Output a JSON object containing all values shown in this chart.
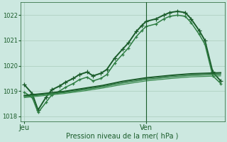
{
  "background_color": "#cce8e0",
  "grid_color": "#aaccbb",
  "line_color_dark": "#1a5c2a",
  "ylabel_ticks": [
    1018,
    1019,
    1020,
    1021,
    1022
  ],
  "xlabel": "Pression niveau de la mer( hPa )",
  "x_tick_labels": [
    "Jeu",
    "Ven"
  ],
  "x_tick_pos": [
    0.0,
    0.62
  ],
  "series": [
    {
      "x": [
        0.0,
        0.04,
        0.07,
        0.11,
        0.14,
        0.18,
        0.21,
        0.25,
        0.28,
        0.32,
        0.35,
        0.39,
        0.42,
        0.46,
        0.5,
        0.53,
        0.57,
        0.6,
        0.62,
        0.67,
        0.71,
        0.74,
        0.78,
        0.82,
        0.85,
        0.89,
        0.92,
        0.96,
        1.0
      ],
      "y": [
        1019.25,
        1018.9,
        1018.25,
        1018.75,
        1019.05,
        1019.2,
        1019.35,
        1019.5,
        1019.65,
        1019.75,
        1019.6,
        1019.7,
        1019.85,
        1020.3,
        1020.65,
        1020.9,
        1021.35,
        1021.6,
        1021.75,
        1021.85,
        1022.0,
        1022.1,
        1022.15,
        1022.1,
        1021.85,
        1021.4,
        1021.0,
        1019.75,
        1019.4
      ],
      "color": "#1a5c2a",
      "lw": 1.4,
      "marker": "+",
      "ms": 4.5
    },
    {
      "x": [
        0.0,
        0.04,
        0.07,
        0.11,
        0.14,
        0.18,
        0.21,
        0.25,
        0.28,
        0.32,
        0.35,
        0.39,
        0.42,
        0.46,
        0.5,
        0.53,
        0.57,
        0.6,
        0.62,
        0.67,
        0.71,
        0.74,
        0.78,
        0.82,
        0.85,
        0.89,
        0.92,
        0.96,
        1.0
      ],
      "y": [
        1018.95,
        1018.75,
        1018.15,
        1018.55,
        1018.85,
        1019.0,
        1019.15,
        1019.3,
        1019.45,
        1019.55,
        1019.4,
        1019.5,
        1019.65,
        1020.1,
        1020.45,
        1020.7,
        1021.15,
        1021.4,
        1021.55,
        1021.65,
        1021.85,
        1021.95,
        1022.0,
        1021.95,
        1021.7,
        1021.25,
        1020.85,
        1019.6,
        1019.3
      ],
      "color": "#2e7d42",
      "lw": 1.1,
      "marker": "+",
      "ms": 3.5
    },
    {
      "x": [
        0.0,
        0.1,
        0.2,
        0.3,
        0.4,
        0.5,
        0.62,
        0.75,
        0.85,
        1.0
      ],
      "y": [
        1018.82,
        1018.9,
        1018.98,
        1019.1,
        1019.22,
        1019.38,
        1019.52,
        1019.62,
        1019.68,
        1019.72
      ],
      "color": "#1a5c2a",
      "lw": 1.5,
      "marker": null,
      "ms": 0
    },
    {
      "x": [
        0.0,
        0.1,
        0.2,
        0.3,
        0.4,
        0.5,
        0.62,
        0.75,
        0.85,
        1.0
      ],
      "y": [
        1018.78,
        1018.86,
        1018.94,
        1019.05,
        1019.17,
        1019.32,
        1019.46,
        1019.56,
        1019.62,
        1019.66
      ],
      "color": "#2e7d42",
      "lw": 1.1,
      "marker": null,
      "ms": 0
    },
    {
      "x": [
        0.0,
        0.1,
        0.2,
        0.3,
        0.4,
        0.5,
        0.62,
        0.75,
        0.85,
        1.0
      ],
      "y": [
        1018.74,
        1018.82,
        1018.9,
        1019.0,
        1019.12,
        1019.26,
        1019.4,
        1019.5,
        1019.56,
        1019.6
      ],
      "color": "#3a8a4e",
      "lw": 0.9,
      "marker": null,
      "ms": 0
    }
  ],
  "vline_x": 0.62,
  "ylim": [
    1017.8,
    1022.5
  ],
  "xlim": [
    -0.02,
    1.02
  ]
}
